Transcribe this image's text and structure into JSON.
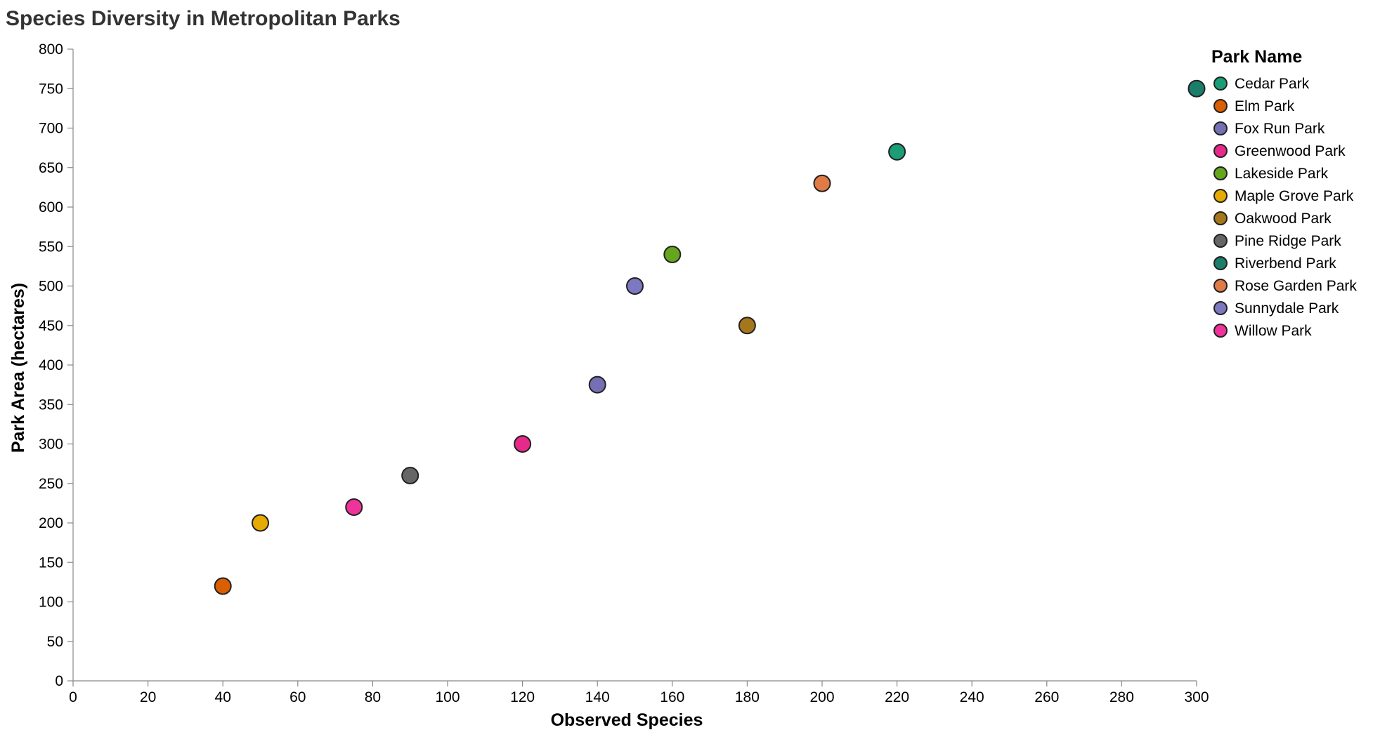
{
  "chart_data": {
    "type": "scatter",
    "title": "Species Diversity in Metropolitan Parks",
    "xlabel": "Observed Species",
    "ylabel": "Park Area (hectares)",
    "xlim": [
      0,
      300
    ],
    "ylim": [
      0,
      800
    ],
    "x_ticks": [
      0,
      20,
      40,
      60,
      80,
      100,
      120,
      140,
      160,
      180,
      200,
      220,
      240,
      260,
      280,
      300
    ],
    "y_ticks": [
      0,
      50,
      100,
      150,
      200,
      250,
      300,
      350,
      400,
      450,
      500,
      550,
      600,
      650,
      700,
      750,
      800
    ],
    "grid": false,
    "legend": {
      "title": "Park Name",
      "placement": "right",
      "entries": [
        {
          "name": "Cedar Park",
          "color": "#1b9e77"
        },
        {
          "name": "Elm Park",
          "color": "#d95f02"
        },
        {
          "name": "Fox Run Park",
          "color": "#7570b3"
        },
        {
          "name": "Greenwood Park",
          "color": "#e7298a"
        },
        {
          "name": "Lakeside Park",
          "color": "#66a61e"
        },
        {
          "name": "Maple Grove Park",
          "color": "#e6ab02"
        },
        {
          "name": "Oakwood Park",
          "color": "#a6761d"
        },
        {
          "name": "Pine Ridge Park",
          "color": "#666666"
        },
        {
          "name": "Riverbend Park",
          "color": "#1b7e6a"
        },
        {
          "name": "Rose Garden Park",
          "color": "#e07b45"
        },
        {
          "name": "Sunnydale Park",
          "color": "#7d79c0"
        },
        {
          "name": "Willow Park",
          "color": "#f0339a"
        }
      ]
    },
    "points": [
      {
        "park": "Riverbend Park",
        "x": 300,
        "y": 750
      },
      {
        "park": "Cedar Park",
        "x": 220,
        "y": 670
      },
      {
        "park": "Rose Garden Park",
        "x": 200,
        "y": 630
      },
      {
        "park": "Lakeside Park",
        "x": 160,
        "y": 540
      },
      {
        "park": "Sunnydale Park",
        "x": 150,
        "y": 500
      },
      {
        "park": "Oakwood Park",
        "x": 180,
        "y": 450
      },
      {
        "park": "Fox Run Park",
        "x": 140,
        "y": 375
      },
      {
        "park": "Greenwood Park",
        "x": 120,
        "y": 300
      },
      {
        "park": "Pine Ridge Park",
        "x": 90,
        "y": 260
      },
      {
        "park": "Willow Park",
        "x": 75,
        "y": 220
      },
      {
        "park": "Maple Grove Park",
        "x": 50,
        "y": 200
      },
      {
        "park": "Elm Park",
        "x": 40,
        "y": 120
      }
    ]
  }
}
